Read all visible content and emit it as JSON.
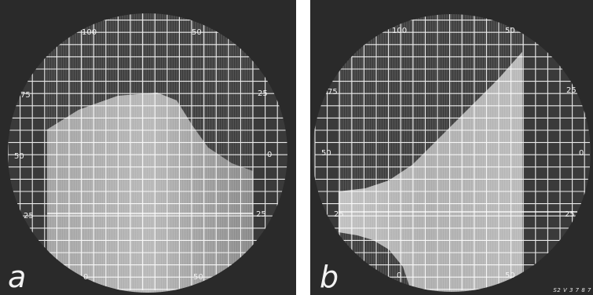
{
  "panels": [
    {
      "label": "a",
      "scale_labels": [
        "100",
        "50",
        "75",
        "25",
        "50",
        "0",
        "25",
        "25",
        "0",
        "50"
      ]
    },
    {
      "label": "b",
      "scale_labels": [
        "100",
        "50",
        "75",
        "25",
        "50",
        "0",
        "25",
        "25",
        "0",
        "50"
      ],
      "plate_code": "S2 V 3 7 8 7"
    }
  ],
  "colors": {
    "screen_background": "#2a2a2a",
    "trace": "#e8e8e8",
    "grid": "#ffffff"
  }
}
